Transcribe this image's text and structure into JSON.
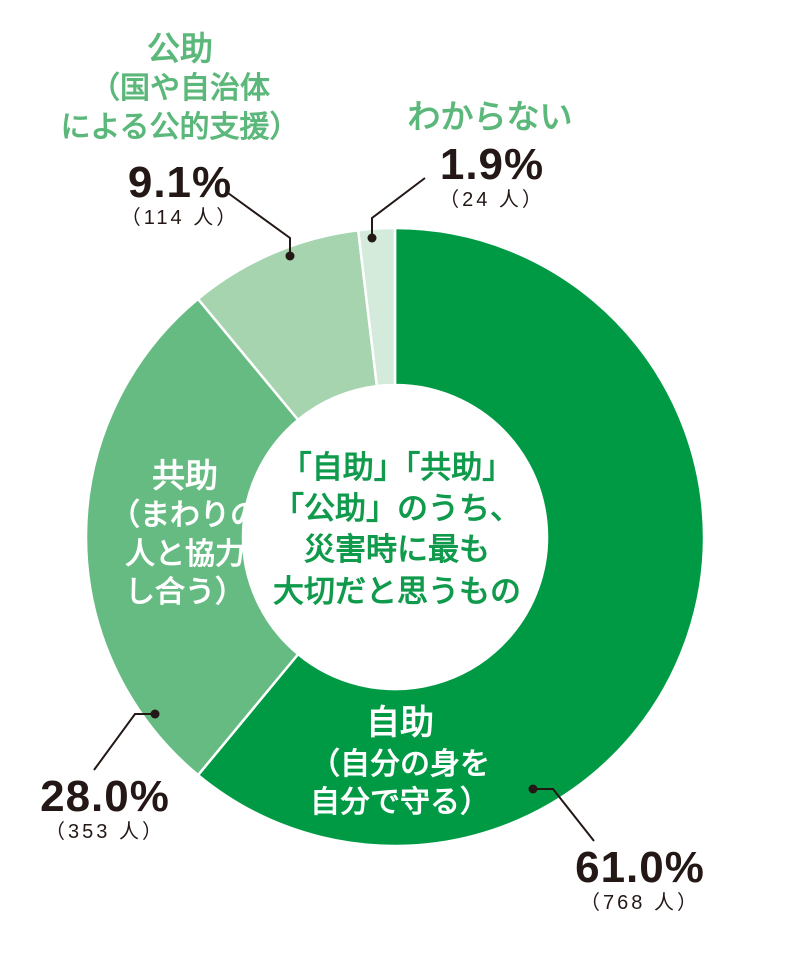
{
  "chart_data": {
    "type": "pie",
    "subtype": "donut",
    "title": "「自助」「共助」「公助」のうち、災害時に最も大切だと思うもの",
    "title_lines": [
      "「自助」「共助」",
      "「公助」のうち、",
      "災害時に最も",
      "大切だと思うもの"
    ],
    "slices": [
      {
        "key": "jijo",
        "name": "自助",
        "desc_lines": [
          "（自分の身を",
          "自分で守る）"
        ],
        "percent": 61.0,
        "count": 768,
        "percent_label": "61.0%",
        "count_label": "（768 人）",
        "color": "#009a44"
      },
      {
        "key": "kyojo",
        "name": "共助",
        "desc_lines": [
          "（まわりの",
          "人と協力",
          "し合う）"
        ],
        "percent": 28.0,
        "count": 353,
        "percent_label": "28.0%",
        "count_label": "（353 人）",
        "color": "#66bb82"
      },
      {
        "key": "kojo",
        "name": "公助",
        "desc_lines": [
          "（国や自治体",
          "による公的支援）"
        ],
        "percent": 9.1,
        "count": 114,
        "percent_label": "9.1%",
        "count_label": "（114 人）",
        "color": "#a6d4af"
      },
      {
        "key": "unknown",
        "name": "わからない",
        "desc_lines": [],
        "percent": 1.9,
        "count": 24,
        "percent_label": "1.9%",
        "count_label": "（24 人）",
        "color": "#d4eadb"
      }
    ],
    "start_angle_deg": 0,
    "direction": "clockwise",
    "legend": "none (direct labels)",
    "center_label_color": "#0f9a4c",
    "outer_label_color": "#5cb87a"
  }
}
